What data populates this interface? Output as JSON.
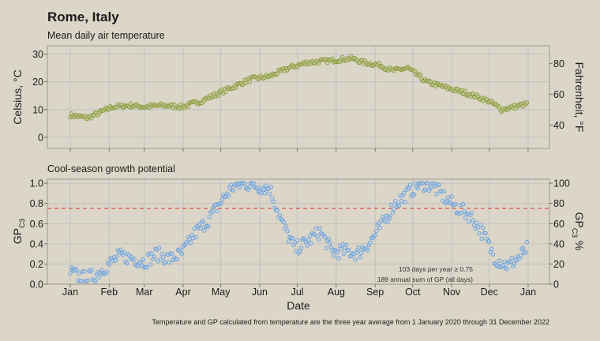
{
  "title": "Rome, Italy",
  "note": "Temperature and GP calculated from temperature are the three year average from 1 January 2020 through 31 December 2022",
  "months": [
    "Jan",
    "Feb",
    "Mar",
    "Apr",
    "May",
    "Jun",
    "Jul",
    "Aug",
    "Sep",
    "Oct",
    "Nov",
    "Dec",
    "Jan"
  ],
  "colors": {
    "background": "#dcd6c8",
    "grid": "#b7bcc3",
    "temp_point": "#8a9a3c",
    "gp_point": "#6c9fd6",
    "threshold_line": "#d9483b"
  },
  "chart_data": [
    {
      "type": "scatter",
      "subtitle": "Mean daily air temperature",
      "ylabel": "Celsius, °C",
      "ylabel_right": "Fahrenheit, °F",
      "ylim": [
        -4,
        33
      ],
      "yticks": [
        0,
        10,
        20,
        30
      ],
      "yticks_right": [
        40,
        60,
        80
      ],
      "x_unit": "day of year",
      "x_anchors": [
        1,
        15,
        35,
        50,
        60,
        75,
        90,
        105,
        120,
        135,
        145,
        160,
        175,
        190,
        205,
        215,
        225,
        235,
        248,
        258,
        270,
        285,
        300,
        320,
        335,
        345,
        355,
        365
      ],
      "y_anchors": [
        8,
        7,
        11,
        11.5,
        11,
        11.5,
        11,
        13,
        16,
        19,
        21,
        22,
        25,
        27,
        27.5,
        28,
        28.5,
        27,
        26,
        24,
        25,
        20,
        18,
        15.5,
        13,
        10,
        11,
        12
      ]
    },
    {
      "type": "scatter",
      "subtitle": "Cool-season growth potential",
      "xlabel": "Date",
      "ylabel": "GP_C3",
      "ylabel_right": "GP_C3 %",
      "ylim": [
        0,
        1.04
      ],
      "yticks": [
        0.0,
        0.2,
        0.4,
        0.6,
        0.8,
        1.0
      ],
      "yticks_right": [
        0,
        20,
        40,
        60,
        80,
        100
      ],
      "threshold": 0.75,
      "annotations": [
        "103 days per year ≥ 0.75",
        "189 annual sum of GP (all days)"
      ],
      "x_unit": "day of year",
      "x_anchors": [
        1,
        10,
        20,
        30,
        40,
        50,
        60,
        70,
        80,
        90,
        100,
        110,
        120,
        130,
        140,
        150,
        160,
        170,
        180,
        190,
        200,
        210,
        220,
        230,
        240,
        250,
        260,
        270,
        280,
        290,
        300,
        310,
        320,
        330,
        340,
        350,
        360,
        365
      ],
      "y_anchors": [
        0.12,
        0.06,
        0.08,
        0.18,
        0.28,
        0.26,
        0.22,
        0.3,
        0.25,
        0.3,
        0.5,
        0.62,
        0.8,
        0.96,
        1.0,
        0.97,
        0.95,
        0.6,
        0.35,
        0.42,
        0.52,
        0.32,
        0.33,
        0.3,
        0.42,
        0.6,
        0.8,
        0.9,
        1.0,
        0.98,
        0.85,
        0.75,
        0.68,
        0.5,
        0.25,
        0.18,
        0.28,
        0.35
      ]
    }
  ]
}
